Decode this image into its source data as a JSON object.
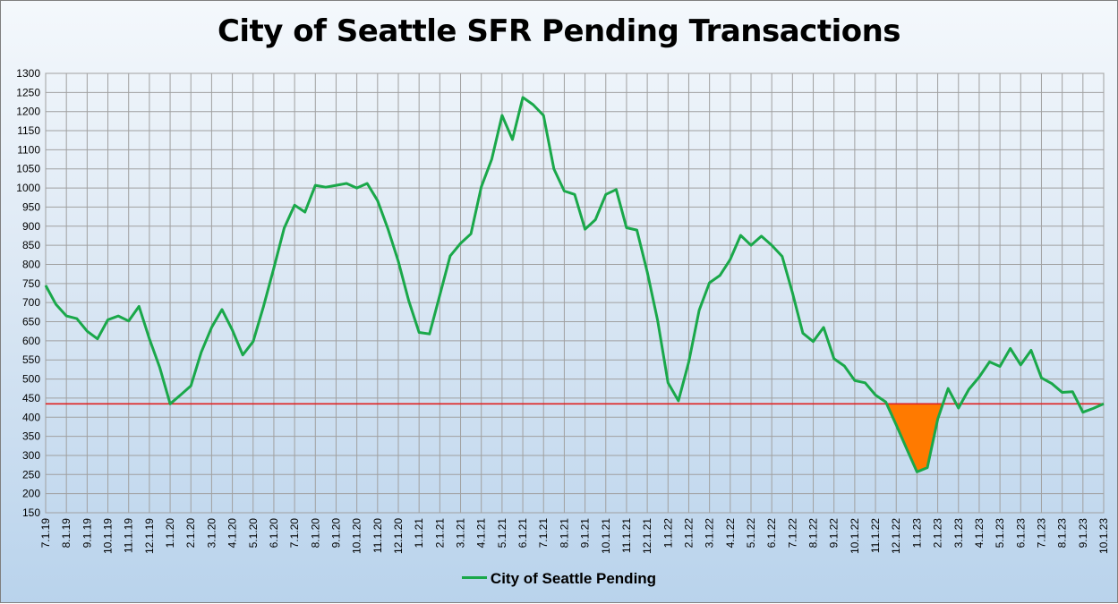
{
  "chart_data": {
    "type": "line",
    "title": "City of Seattle SFR Pending Transactions",
    "xlabel": "",
    "ylabel": "",
    "ylim": [
      150,
      1300
    ],
    "yticks": [
      150,
      200,
      250,
      300,
      350,
      400,
      450,
      500,
      550,
      600,
      650,
      700,
      750,
      800,
      850,
      900,
      950,
      1000,
      1050,
      1100,
      1150,
      1200,
      1250,
      1300
    ],
    "grid": true,
    "legend_position": "bottom",
    "x_tick_labels": [
      "7.1.19",
      "8.1.19",
      "9.1.19",
      "10.1.19",
      "11.1.19",
      "12.1.19",
      "1.1.20",
      "2.1.20",
      "3.1.20",
      "4.1.20",
      "5.1.20",
      "6.1.20",
      "7.1.20",
      "8.1.20",
      "9.1.20",
      "10.1.20",
      "11.1.20",
      "12.1.20",
      "1.1.21",
      "2.1.21",
      "3.1.21",
      "4.1.21",
      "5.1.21",
      "6.1.21",
      "7.1.21",
      "8.1.21",
      "9.1.21",
      "10.1.21",
      "11.1.21",
      "12.1.21",
      "1.1.22",
      "2.1.22",
      "3.1.22",
      "4.1.22",
      "5.1.22",
      "6.1.22",
      "7.1.22",
      "8.1.22",
      "9.1.22",
      "10.1.22",
      "11.1.22",
      "12.1.22",
      "1.1.23",
      "2.1.23",
      "3.1.23",
      "4.1.23",
      "5.1.23",
      "6.1.23",
      "7.1.23",
      "8.1.23",
      "9.1.23",
      "10.1.23"
    ],
    "series": [
      {
        "name": "City of Seattle Pending",
        "color": "#1aa84a",
        "values": [
          745,
          695,
          665,
          658,
          625,
          605,
          655,
          665,
          652,
          690,
          605,
          530,
          435,
          458,
          482,
          570,
          635,
          682,
          628,
          563,
          598,
          690,
          790,
          895,
          955,
          937,
          1007,
          1002,
          1007,
          1012,
          1000,
          1012,
          967,
          893,
          808,
          705,
          622,
          618,
          720,
          822,
          855,
          880,
          1003,
          1075,
          1190,
          1127,
          1237,
          1218,
          1190,
          1050,
          992,
          983,
          892,
          917,
          983,
          996,
          896,
          890,
          780,
          653,
          490,
          443,
          545,
          680,
          752,
          771,
          813,
          876,
          850,
          874,
          850,
          821,
          725,
          620,
          598,
          635,
          553,
          534,
          496,
          490,
          458,
          440,
          380,
          318,
          257,
          268,
          395,
          475,
          424,
          473,
          505,
          545,
          533,
          580,
          537,
          575,
          503,
          488,
          465,
          467,
          413,
          423,
          435
        ]
      }
    ],
    "reference_line": {
      "value": 435,
      "color": "#e02020"
    },
    "shaded_region": {
      "color": "#ff7a00",
      "description": ""
    }
  }
}
